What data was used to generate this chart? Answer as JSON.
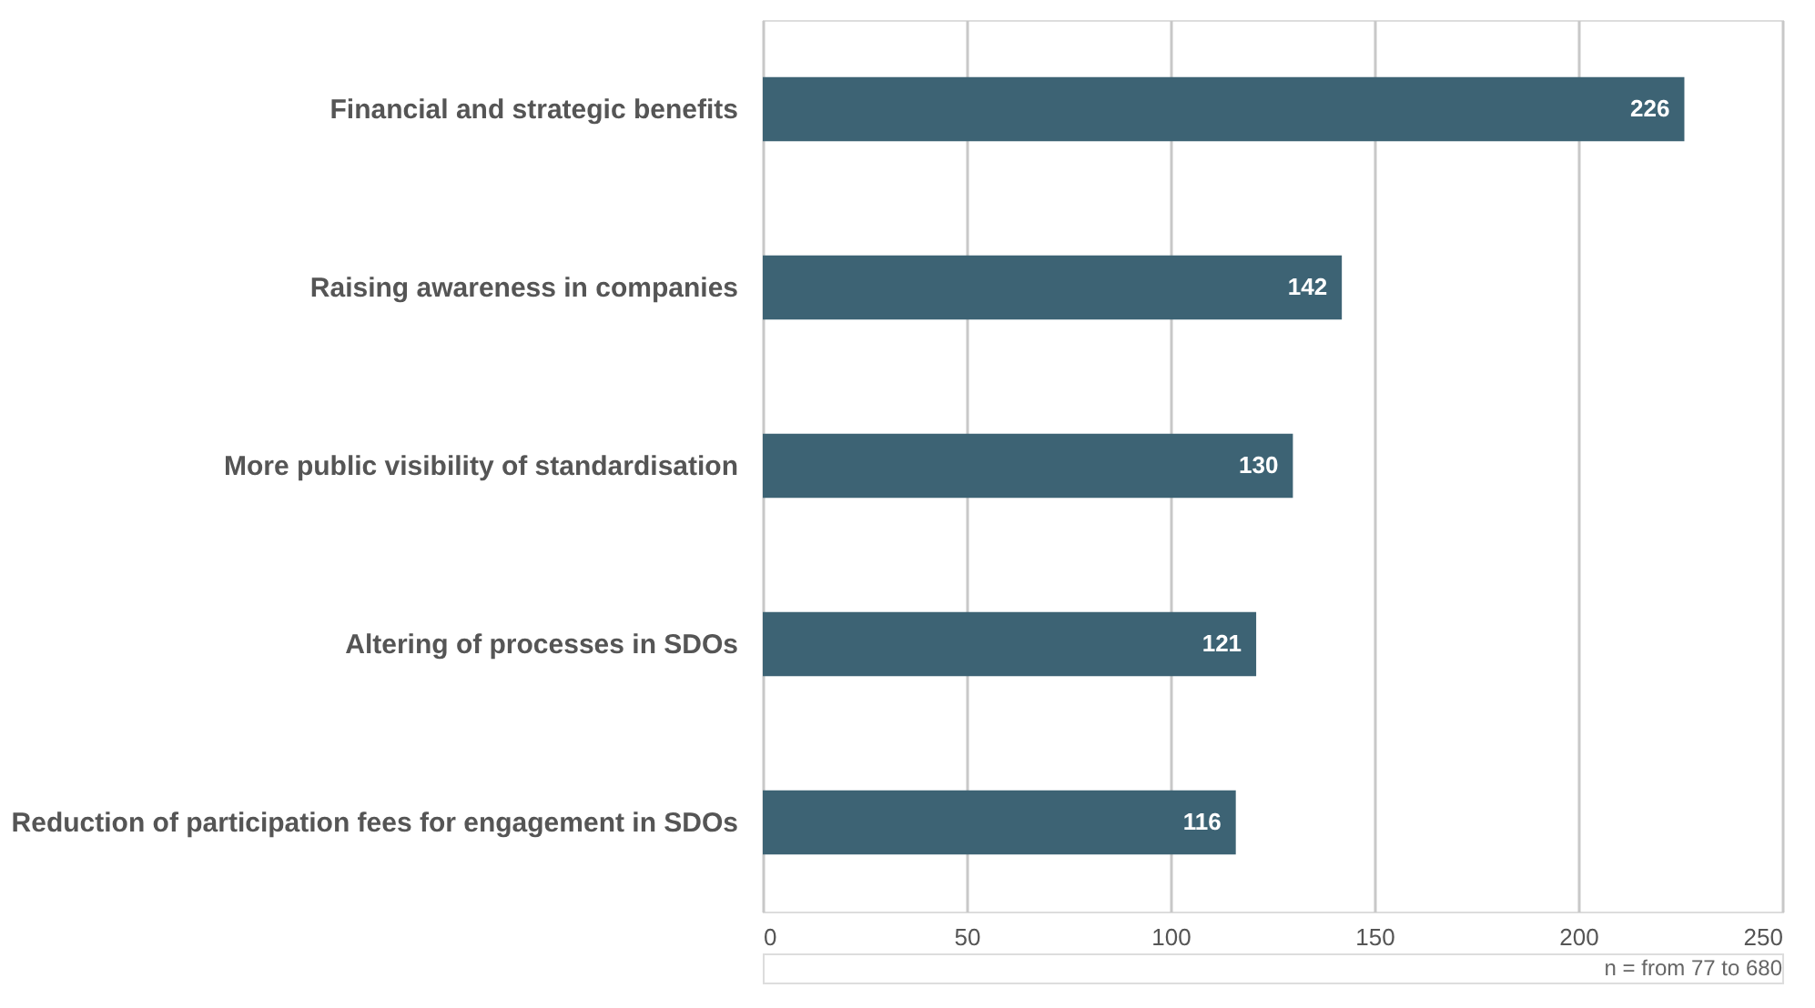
{
  "chart_data": {
    "type": "bar",
    "orientation": "horizontal",
    "categories": [
      "Financial and strategic benefits",
      "Raising awareness in companies",
      "More public visibility of standardisation",
      "Altering of processes in SDOs",
      "Reduction of participation fees for engagement in SDOs"
    ],
    "values": [
      226,
      142,
      130,
      121,
      116
    ],
    "color": "#3d6374",
    "xlim": [
      0,
      250
    ],
    "xticks": [
      0,
      50,
      100,
      150,
      200,
      250
    ],
    "grid": "x",
    "data_labels": true,
    "annotations": [
      "n = from 77 to 680"
    ]
  }
}
